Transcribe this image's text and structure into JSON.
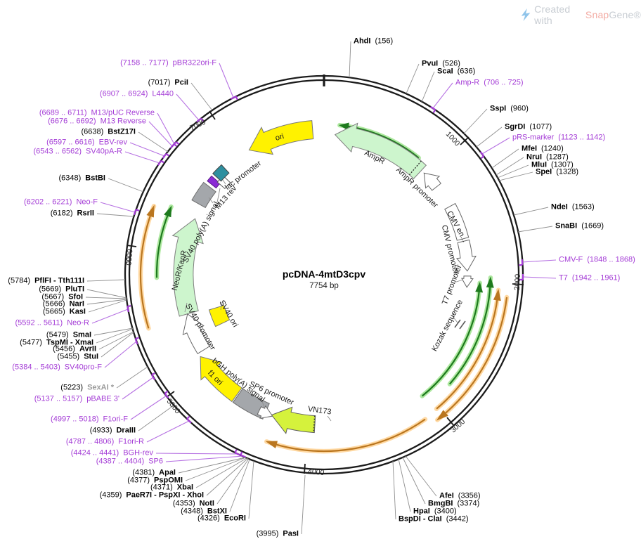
{
  "plasmid": {
    "name": "pcDNA-4mtD3cpv",
    "size": "7754 bp"
  },
  "watermark": {
    "created_with": "Created with ",
    "brand_snap": "Snap",
    "brand_gene": "Gene®"
  },
  "ticks": [
    "1000",
    "2000",
    "3000",
    "4000",
    "5000",
    "6000",
    "7000"
  ],
  "colors": {
    "primer": "#A43CD6",
    "enzyme": "#000000",
    "disabled_site": "#9b9b9b",
    "cds_fill": "#CDF5CD",
    "ori_fill": "#FFF200",
    "misc_fill": "#A4A7AB",
    "vn173_fill": "#D5F23C",
    "lac_fill": "#2E8F9F",
    "purple_box": "#8B2BD5",
    "orf_green": "#1E7A1E",
    "orf_green_glow": "#AEE8A0",
    "orf_orange": "#BA761F",
    "orf_orange_glow": "#FFD9A3",
    "backbone": "#1b1b1b",
    "leader_enzyme": "#8f8f8f",
    "leader_primer": "#B671E2"
  },
  "features": [
    {
      "id": "ori",
      "label": "ori"
    },
    {
      "id": "lac",
      "label": "lac promoter"
    },
    {
      "id": "m13rev",
      "label": "M13 rev"
    },
    {
      "id": "sv40pa",
      "label": "SV40 poly(A) signal"
    },
    {
      "id": "neor",
      "label": "NeoR/KanR"
    },
    {
      "id": "sv40prom",
      "label": "SV40 promoter"
    },
    {
      "id": "sv40ori",
      "label": "SV40 ori"
    },
    {
      "id": "f1ori",
      "label": "f1 ori"
    },
    {
      "id": "bghpa",
      "label": "bGH poly(A) signal"
    },
    {
      "id": "sp6prom",
      "label": "SP6 promoter"
    },
    {
      "id": "vn173",
      "label": "VN173"
    },
    {
      "id": "ampr",
      "label": "AmpR"
    },
    {
      "id": "amprprom",
      "label": "AmpR promoter"
    },
    {
      "id": "cmven",
      "label": "CMV en..."
    },
    {
      "id": "cmvprom",
      "label": "CMV promoter"
    },
    {
      "id": "t7prom",
      "label": "T7 promoter"
    },
    {
      "id": "kozak",
      "label": "Kozak sequence"
    }
  ],
  "callouts": [
    {
      "name": "pBR322ori-F",
      "pos": "(7158 .. 7177)",
      "kind": "primer",
      "name_first": false
    },
    {
      "name": "PciI",
      "pos": "(7017)",
      "kind": "enzyme",
      "name_first": false
    },
    {
      "name": "L4440",
      "pos": "(6907 .. 6924)",
      "kind": "primer",
      "name_first": false
    },
    {
      "name": "M13/pUC Reverse",
      "pos": "(6689 .. 6711)",
      "kind": "primer",
      "name_first": false
    },
    {
      "name": "M13 Reverse",
      "pos": "(6676 .. 6692)",
      "kind": "primer",
      "name_first": false
    },
    {
      "name": "BstZ17I",
      "pos": "(6638)",
      "kind": "enzyme",
      "name_first": false
    },
    {
      "name": "EBV-rev",
      "pos": "(6597 .. 6616)",
      "kind": "primer",
      "name_first": false
    },
    {
      "name": "SV40pA-R",
      "pos": "(6543 .. 6562)",
      "kind": "primer",
      "name_first": false
    },
    {
      "name": "BstBI",
      "pos": "(6348)",
      "kind": "enzyme",
      "name_first": false
    },
    {
      "name": "Neo-F",
      "pos": "(6202 .. 6221)",
      "kind": "primer",
      "name_first": false
    },
    {
      "name": "RsrII",
      "pos": "(6182)",
      "kind": "enzyme",
      "name_first": false
    },
    {
      "name": "PflFI - Tth111I",
      "pos": "(5784)",
      "kind": "enzyme",
      "name_first": false
    },
    {
      "name": "PluTI",
      "pos": "(5669)",
      "kind": "enzyme",
      "name_first": false
    },
    {
      "name": "SfoI",
      "pos": "(5667)",
      "kind": "enzyme",
      "name_first": false
    },
    {
      "name": "NarI",
      "pos": "(5666)",
      "kind": "enzyme",
      "name_first": false
    },
    {
      "name": "KasI",
      "pos": "(5665)",
      "kind": "enzyme",
      "name_first": false
    },
    {
      "name": "Neo-R",
      "pos": "(5592 .. 5611)",
      "kind": "primer",
      "name_first": false
    },
    {
      "name": "SmaI",
      "pos": "(5479)",
      "kind": "enzyme",
      "name_first": false
    },
    {
      "name": "TspMI - XmaI",
      "pos": "(5477)",
      "kind": "enzyme",
      "name_first": false
    },
    {
      "name": "AvrII",
      "pos": "(5456)",
      "kind": "enzyme",
      "name_first": false
    },
    {
      "name": "StuI",
      "pos": "(5455)",
      "kind": "enzyme",
      "name_first": false
    },
    {
      "name": "SV40pro-F",
      "pos": "(5384 .. 5403)",
      "kind": "primer",
      "name_first": false
    },
    {
      "name": "SexAI *",
      "pos": "(5223)",
      "kind": "disabled",
      "name_first": false
    },
    {
      "name": "pBABE 3'",
      "pos": "(5137 .. 5157)",
      "kind": "primer",
      "name_first": false
    },
    {
      "name": "F1ori-F",
      "pos": "(4997 .. 5018)",
      "kind": "primer",
      "name_first": false
    },
    {
      "name": "DraIII",
      "pos": "(4933)",
      "kind": "enzyme",
      "name_first": false
    },
    {
      "name": "F1ori-R",
      "pos": "(4787 .. 4806)",
      "kind": "primer",
      "name_first": false
    },
    {
      "name": "BGH-rev",
      "pos": "(4424 .. 4441)",
      "kind": "primer",
      "name_first": false
    },
    {
      "name": "SP6",
      "pos": "(4387 .. 4404)",
      "kind": "primer",
      "name_first": false
    },
    {
      "name": "ApaI",
      "pos": "(4381)",
      "kind": "enzyme",
      "name_first": false
    },
    {
      "name": "PspOMI",
      "pos": "(4377)",
      "kind": "enzyme",
      "name_first": false
    },
    {
      "name": "XbaI",
      "pos": "(4371)",
      "kind": "enzyme",
      "name_first": false
    },
    {
      "name": "PaeR7I - PspXI - XhoI",
      "pos": "(4359)",
      "kind": "enzyme",
      "name_first": false
    },
    {
      "name": "NotI",
      "pos": "(4353)",
      "kind": "enzyme",
      "name_first": false
    },
    {
      "name": "BstXI",
      "pos": "(4348)",
      "kind": "enzyme",
      "name_first": false
    },
    {
      "name": "EcoRI",
      "pos": "(4326)",
      "kind": "enzyme",
      "name_first": false
    },
    {
      "name": "PasI",
      "pos": "(3995)",
      "kind": "enzyme",
      "name_first": false
    },
    {
      "name": "AfeI",
      "pos": "(3356)",
      "kind": "enzyme",
      "name_first": true
    },
    {
      "name": "BmgBI",
      "pos": "(3374)",
      "kind": "enzyme",
      "name_first": true
    },
    {
      "name": "HpaI",
      "pos": "(3400)",
      "kind": "enzyme",
      "name_first": true
    },
    {
      "name": "BspDI - ClaI",
      "pos": "(3442)",
      "kind": "enzyme",
      "name_first": true
    },
    {
      "name": "AhdI",
      "pos": "(156)",
      "kind": "enzyme",
      "name_first": true
    },
    {
      "name": "PvuI",
      "pos": "(526)",
      "kind": "enzyme",
      "name_first": true
    },
    {
      "name": "ScaI",
      "pos": "(636)",
      "kind": "enzyme",
      "name_first": true
    },
    {
      "name": "Amp-R",
      "pos": "(706 .. 725)",
      "kind": "primer",
      "name_first": true
    },
    {
      "name": "SspI",
      "pos": "(960)",
      "kind": "enzyme",
      "name_first": true
    },
    {
      "name": "SgrDI",
      "pos": "(1077)",
      "kind": "enzyme",
      "name_first": true
    },
    {
      "name": "pRS-marker",
      "pos": "(1123 .. 1142)",
      "kind": "primer",
      "name_first": true
    },
    {
      "name": "MfeI",
      "pos": "(1240)",
      "kind": "enzyme",
      "name_first": true
    },
    {
      "name": "NruI",
      "pos": "(1287)",
      "kind": "enzyme",
      "name_first": true
    },
    {
      "name": "MluI",
      "pos": "(1307)",
      "kind": "enzyme",
      "name_first": true
    },
    {
      "name": "SpeI",
      "pos": "(1328)",
      "kind": "enzyme",
      "name_first": true
    },
    {
      "name": "NdeI",
      "pos": "(1563)",
      "kind": "enzyme",
      "name_first": true
    },
    {
      "name": "SnaBI",
      "pos": "(1669)",
      "kind": "enzyme",
      "name_first": true
    },
    {
      "name": "CMV-F",
      "pos": "(1848 .. 1868)",
      "kind": "primer",
      "name_first": true
    },
    {
      "name": "T7",
      "pos": "(1942 .. 1961)",
      "kind": "primer",
      "name_first": true
    }
  ]
}
